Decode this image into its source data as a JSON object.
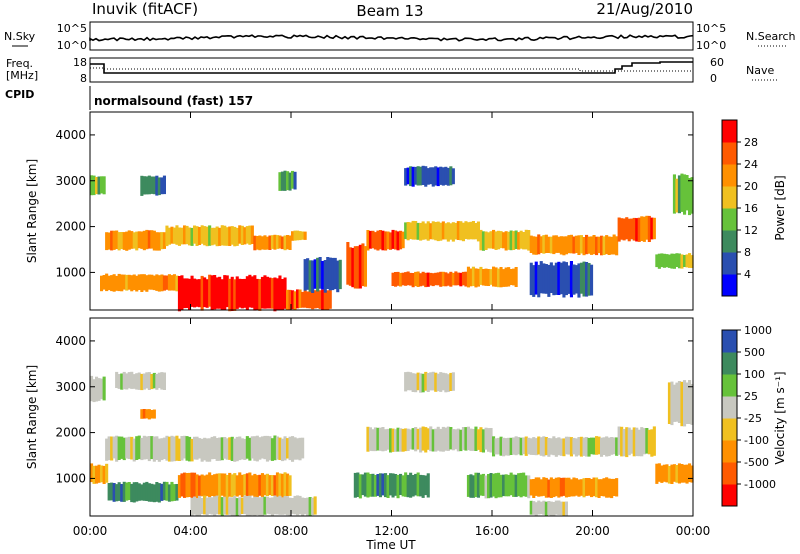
{
  "header": {
    "station": "Inuvik (fitACF)",
    "beam": "Beam 13",
    "date": "21/Aug/2010"
  },
  "noise_panel": {
    "left_label": "N.Sky",
    "right_label": "N.Search",
    "left_ticks": [
      "10^5",
      "10^0"
    ],
    "right_ticks": [
      "10^5",
      "10^0"
    ]
  },
  "freq_panel": {
    "left_label_1": "Freq.",
    "left_label_2": "[MHz]",
    "right_label": "Nave",
    "left_ticks": [
      "18",
      "8"
    ],
    "right_ticks": [
      "60",
      "0"
    ]
  },
  "cpid": {
    "label": "CPID",
    "value": "normalsound (fast) 157"
  },
  "x_axis": {
    "label": "Time UT",
    "ticks": [
      "00:00",
      "04:00",
      "08:00",
      "12:00",
      "16:00",
      "20:00",
      "00:00"
    ]
  },
  "colors": {
    "power": [
      "#0000ff",
      "#2a4fb0",
      "#3d8a5e",
      "#66c23a",
      "#f0c020",
      "#ff9000",
      "#ff5a00",
      "#ff0000"
    ],
    "velocity": [
      "#ff0000",
      "#ff5a00",
      "#ff9000",
      "#f0c020",
      "#c8c8c0",
      "#66c23a",
      "#3d8a5e",
      "#2a4fb0"
    ]
  },
  "chart_data": [
    {
      "type": "heatmap",
      "panel": "power",
      "xlabel": "",
      "ylabel": "Slant Range [km]",
      "xlim": [
        0,
        24
      ],
      "ylim": [
        180,
        4500
      ],
      "yticks": [
        1000,
        2000,
        3000,
        4000
      ],
      "colorbar": {
        "label": "Power [dB]",
        "ticks": [
          "4",
          "8",
          "12",
          "16",
          "20",
          "24",
          "28"
        ],
        "range": [
          0,
          32
        ]
      },
      "bands": [
        {
          "t0": 0.0,
          "t1": 0.6,
          "r0": 2700,
          "r1": 3100,
          "level": 3
        },
        {
          "t0": 0.6,
          "t1": 3.0,
          "r0": 1500,
          "r1": 1900,
          "level": 5
        },
        {
          "t0": 3.0,
          "t1": 6.5,
          "r0": 1600,
          "r1": 2000,
          "level": 4
        },
        {
          "t0": 6.5,
          "t1": 8.0,
          "r0": 1500,
          "r1": 1800,
          "level": 5
        },
        {
          "t0": 8.0,
          "t1": 8.6,
          "r0": 1700,
          "r1": 1900,
          "level": 4
        },
        {
          "t0": 0.4,
          "t1": 3.5,
          "r0": 600,
          "r1": 950,
          "level": 5
        },
        {
          "t0": 3.5,
          "t1": 7.8,
          "r0": 200,
          "r1": 900,
          "level": 7
        },
        {
          "t0": 7.8,
          "t1": 9.6,
          "r0": 200,
          "r1": 600,
          "level": 6
        },
        {
          "t0": 8.5,
          "t1": 10.0,
          "r0": 600,
          "r1": 1300,
          "level": 1
        },
        {
          "t0": 10.2,
          "t1": 11.0,
          "r0": 700,
          "r1": 1600,
          "level": 6
        },
        {
          "t0": 11.0,
          "t1": 12.5,
          "r0": 1500,
          "r1": 1900,
          "level": 6
        },
        {
          "t0": 12.0,
          "t1": 15.0,
          "r0": 700,
          "r1": 1000,
          "level": 6
        },
        {
          "t0": 15.0,
          "t1": 17.0,
          "r0": 700,
          "r1": 1100,
          "level": 5
        },
        {
          "t0": 12.5,
          "t1": 15.5,
          "r0": 1700,
          "r1": 2100,
          "level": 4
        },
        {
          "t0": 15.5,
          "t1": 17.5,
          "r0": 1500,
          "r1": 1900,
          "level": 4
        },
        {
          "t0": 17.5,
          "t1": 21.0,
          "r0": 1400,
          "r1": 1800,
          "level": 5
        },
        {
          "t0": 21.0,
          "t1": 22.5,
          "r0": 1700,
          "r1": 2200,
          "level": 6
        },
        {
          "t0": 22.5,
          "t1": 24.0,
          "r0": 1100,
          "r1": 1400,
          "level": 3
        },
        {
          "t0": 23.2,
          "t1": 24.0,
          "r0": 2300,
          "r1": 3100,
          "level": 3
        },
        {
          "t0": 12.5,
          "t1": 14.5,
          "r0": 2900,
          "r1": 3300,
          "level": 1
        },
        {
          "t0": 17.5,
          "t1": 20.0,
          "r0": 500,
          "r1": 1200,
          "level": 1
        },
        {
          "t0": 2.0,
          "t1": 3.0,
          "r0": 2700,
          "r1": 3100,
          "level": 2
        },
        {
          "t0": 7.5,
          "t1": 8.2,
          "r0": 2800,
          "r1": 3200,
          "level": 2
        }
      ]
    },
    {
      "type": "heatmap",
      "panel": "velocity",
      "xlabel": "Time UT",
      "ylabel": "Slant Range [km]",
      "xlim": [
        0,
        24
      ],
      "ylim": [
        180,
        4500
      ],
      "yticks": [
        1000,
        2000,
        3000,
        4000
      ],
      "colorbar": {
        "label": "Velocity [m s⁻¹]",
        "ticks": [
          "-1000",
          "-500",
          "-100",
          "-25",
          "25",
          "100",
          "500",
          "1000"
        ],
        "range": [
          -1200,
          1200
        ]
      },
      "bands": [
        {
          "t0": 0.0,
          "t1": 0.6,
          "r0": 2700,
          "r1": 3200,
          "level": 4
        },
        {
          "t0": 0.6,
          "t1": 8.5,
          "r0": 1400,
          "r1": 1900,
          "level": 4
        },
        {
          "t0": 0.0,
          "t1": 0.7,
          "r0": 900,
          "r1": 1300,
          "level": 2
        },
        {
          "t0": 0.7,
          "t1": 3.5,
          "r0": 500,
          "r1": 900,
          "level": 6
        },
        {
          "t0": 3.5,
          "t1": 8.0,
          "r0": 600,
          "r1": 1100,
          "level": 2
        },
        {
          "t0": 4.0,
          "t1": 9.0,
          "r0": 200,
          "r1": 600,
          "level": 4
        },
        {
          "t0": 10.5,
          "t1": 13.5,
          "r0": 600,
          "r1": 1100,
          "level": 6
        },
        {
          "t0": 11.0,
          "t1": 16.0,
          "r0": 1600,
          "r1": 2100,
          "level": 4
        },
        {
          "t0": 15.0,
          "t1": 17.5,
          "r0": 600,
          "r1": 1100,
          "level": 5
        },
        {
          "t0": 17.5,
          "t1": 21.0,
          "r0": 600,
          "r1": 1000,
          "level": 2
        },
        {
          "t0": 16.0,
          "t1": 21.0,
          "r0": 1500,
          "r1": 1900,
          "level": 4
        },
        {
          "t0": 21.0,
          "t1": 22.5,
          "r0": 1500,
          "r1": 2100,
          "level": 4
        },
        {
          "t0": 22.5,
          "t1": 24.0,
          "r0": 900,
          "r1": 1300,
          "level": 2
        },
        {
          "t0": 23.0,
          "t1": 24.0,
          "r0": 2200,
          "r1": 3100,
          "level": 4
        },
        {
          "t0": 1.0,
          "t1": 3.0,
          "r0": 2950,
          "r1": 3300,
          "level": 4
        },
        {
          "t0": 2.0,
          "t1": 2.6,
          "r0": 2300,
          "r1": 2500,
          "level": 2
        },
        {
          "t0": 12.5,
          "t1": 14.5,
          "r0": 2900,
          "r1": 3300,
          "level": 4
        },
        {
          "t0": 17.5,
          "t1": 19.0,
          "r0": 200,
          "r1": 500,
          "level": 4
        }
      ]
    }
  ]
}
